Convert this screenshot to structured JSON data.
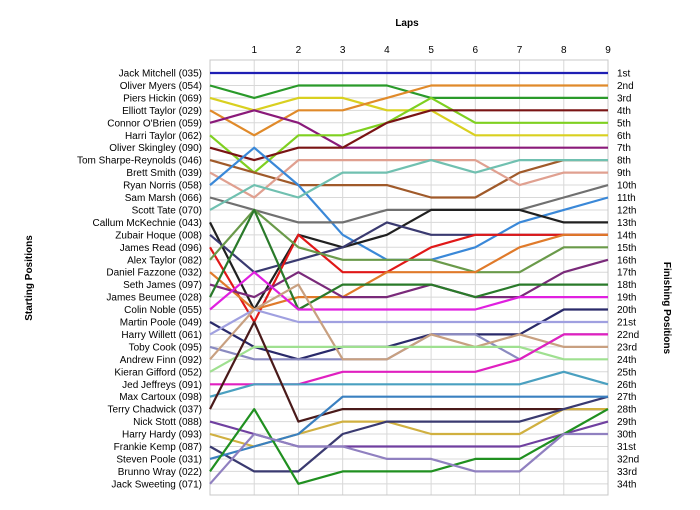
{
  "chart_data": {
    "type": "line",
    "title": "",
    "xlabel": "Laps",
    "ylabel_left": "Starting Positions",
    "ylabel_right": "Finishing Positions",
    "x_ticks": [
      "1",
      "2",
      "3",
      "4",
      "5",
      "6",
      "7",
      "8",
      "9"
    ],
    "xlim": [
      0,
      9
    ],
    "grid": true,
    "starting_labels": [
      "Jack Mitchell (035)",
      "Oliver Myers (054)",
      "Piers Hickin (069)",
      "Elliott Taylor (029)",
      "Connor O'Brien (059)",
      "Harri Taylor (062)",
      "Oliver Skingley (090)",
      "Tom Sharpe-Reynolds (046)",
      "Brett Smith (039)",
      "Ryan Norris (058)",
      "Sam Marsh (066)",
      "Scott Tate (070)",
      "Callum McKechnie (043)",
      "Zubair Hoque (008)",
      "James Read (096)",
      "Alex Taylor (082)",
      "Daniel Fazzone (032)",
      "Seth James (097)",
      "James Beumee (028)",
      "Colin Noble (055)",
      "Martin Poole (049)",
      "Harry Willett (061)",
      "Toby Cook (095)",
      "Andrew Finn (092)",
      "Kieran Gifford (052)",
      "Jed Jeffreys (091)",
      "Max Cartoux (098)",
      "Terry Chadwick (037)",
      "Nick Stott (088)",
      "Harry Hardy (093)",
      "Frankie Kemp (087)",
      "Steven Poole (031)",
      "Brunno Wray (022)",
      "Jack Sweeting (071)"
    ],
    "finishing_labels": [
      "1st",
      "2nd",
      "3rd",
      "4th",
      "5th",
      "6th",
      "7th",
      "8th",
      "9th",
      "10th",
      "11th",
      "12th",
      "13th",
      "14th",
      "15th",
      "16th",
      "17th",
      "18th",
      "19th",
      "20th",
      "21st",
      "22nd",
      "23rd",
      "24th",
      "25th",
      "26th",
      "27th",
      "28th",
      "29th",
      "30th",
      "31st",
      "32nd",
      "33rd",
      "34th"
    ],
    "series": [
      {
        "color": "#1f1fb4",
        "values": [
          1,
          1,
          1,
          1,
          1,
          1,
          1,
          1,
          1,
          1
        ]
      },
      {
        "color": "#2a9a2a",
        "values": [
          2,
          3,
          2,
          2,
          2,
          3,
          3,
          3,
          3,
          3
        ]
      },
      {
        "color": "#d9d020",
        "values": [
          3,
          4,
          3,
          3,
          4,
          4,
          6,
          6,
          6,
          6
        ]
      },
      {
        "color": "#e08a2a",
        "values": [
          4,
          6,
          4,
          4,
          3,
          2,
          2,
          2,
          2,
          2
        ]
      },
      {
        "color": "#8a1a7a",
        "values": [
          5,
          4,
          5,
          7,
          7,
          7,
          7,
          7,
          7,
          7
        ]
      },
      {
        "color": "#7fd020",
        "values": [
          6,
          9,
          6,
          6,
          5,
          3,
          5,
          5,
          5,
          5
        ]
      },
      {
        "color": "#7a1414",
        "values": [
          7,
          8,
          7,
          7,
          5,
          4,
          4,
          4,
          4,
          4
        ]
      },
      {
        "color": "#a05a2a",
        "values": [
          8,
          9,
          10,
          10,
          10,
          11,
          11,
          9,
          8,
          8
        ]
      },
      {
        "color": "#e0a090",
        "values": [
          9,
          11,
          8,
          8,
          8,
          8,
          8,
          10,
          9,
          9
        ]
      },
      {
        "color": "#3a88d8",
        "values": [
          10,
          7,
          10,
          14,
          16,
          16,
          15,
          13,
          12,
          11
        ]
      },
      {
        "color": "#707070",
        "values": [
          11,
          12,
          13,
          13,
          12,
          12,
          12,
          12,
          11,
          10
        ]
      },
      {
        "color": "#70c0b0",
        "values": [
          12,
          10,
          11,
          9,
          9,
          8,
          9,
          8,
          8,
          8
        ]
      },
      {
        "color": "#202020",
        "values": [
          13,
          20,
          14,
          15,
          14,
          12,
          12,
          12,
          13,
          13
        ]
      },
      {
        "color": "#3a3a70",
        "values": [
          14,
          17,
          16,
          15,
          13,
          14,
          14,
          14,
          14,
          14
        ]
      },
      {
        "color": "#e01818",
        "values": [
          15,
          21,
          14,
          17,
          17,
          15,
          14,
          14,
          14,
          14
        ]
      },
      {
        "color": "#6a9a4a",
        "values": [
          16,
          12,
          15,
          16,
          16,
          16,
          17,
          17,
          15,
          15
        ]
      },
      {
        "color": "#e07a2a",
        "values": [
          17,
          20,
          19,
          19,
          17,
          17,
          17,
          15,
          14,
          14
        ]
      },
      {
        "color": "#7a2a7a",
        "values": [
          18,
          19,
          17,
          19,
          19,
          18,
          19,
          19,
          17,
          16
        ]
      },
      {
        "color": "#2a7a2a",
        "values": [
          19,
          12,
          20,
          18,
          18,
          18,
          19,
          18,
          18,
          18
        ]
      },
      {
        "color": "#e020e0",
        "values": [
          20,
          17,
          20,
          20,
          20,
          20,
          20,
          19,
          19,
          19
        ]
      },
      {
        "color": "#2a2a6a",
        "values": [
          21,
          23,
          24,
          23,
          23,
          22,
          22,
          22,
          20,
          20
        ]
      },
      {
        "color": "#a0a0e0",
        "values": [
          22,
          20,
          21,
          21,
          21,
          21,
          21,
          21,
          21,
          21
        ]
      },
      {
        "color": "#8a8ac0",
        "values": [
          23,
          24,
          24,
          24,
          24,
          22,
          22,
          24,
          22,
          22
        ]
      },
      {
        "color": "#c8a080",
        "values": [
          24,
          20,
          18,
          24,
          24,
          22,
          23,
          22,
          23,
          23
        ]
      },
      {
        "color": "#9fe090",
        "values": [
          25,
          23,
          23,
          23,
          23,
          23,
          23,
          23,
          24,
          24
        ]
      },
      {
        "color": "#e020c0",
        "values": [
          26,
          26,
          26,
          25,
          25,
          25,
          25,
          24,
          22,
          22
        ]
      },
      {
        "color": "#4aa0c0",
        "values": [
          27,
          26,
          26,
          26,
          26,
          26,
          26,
          26,
          25,
          26
        ]
      },
      {
        "color": "#4a1a1a",
        "values": [
          28,
          21,
          29,
          28,
          28,
          28,
          28,
          28,
          28,
          28
        ]
      },
      {
        "color": "#7040a0",
        "values": [
          29,
          30,
          31,
          31,
          31,
          31,
          31,
          31,
          30,
          29
        ]
      },
      {
        "color": "#d0b040",
        "values": [
          30,
          31,
          30,
          29,
          29,
          30,
          30,
          30,
          28,
          28
        ]
      },
      {
        "color": "#3a3a70",
        "values": [
          31,
          33,
          33,
          30,
          29,
          29,
          29,
          29,
          28,
          27
        ]
      },
      {
        "color": "#3a80c0",
        "values": [
          32,
          31,
          30,
          27,
          27,
          27,
          27,
          27,
          27,
          27
        ]
      },
      {
        "color": "#209020",
        "values": [
          33,
          28,
          34,
          33,
          33,
          33,
          32,
          32,
          30,
          28
        ]
      },
      {
        "color": "#9080c0",
        "values": [
          34,
          30,
          31,
          31,
          32,
          32,
          33,
          33,
          30,
          30
        ]
      }
    ]
  }
}
